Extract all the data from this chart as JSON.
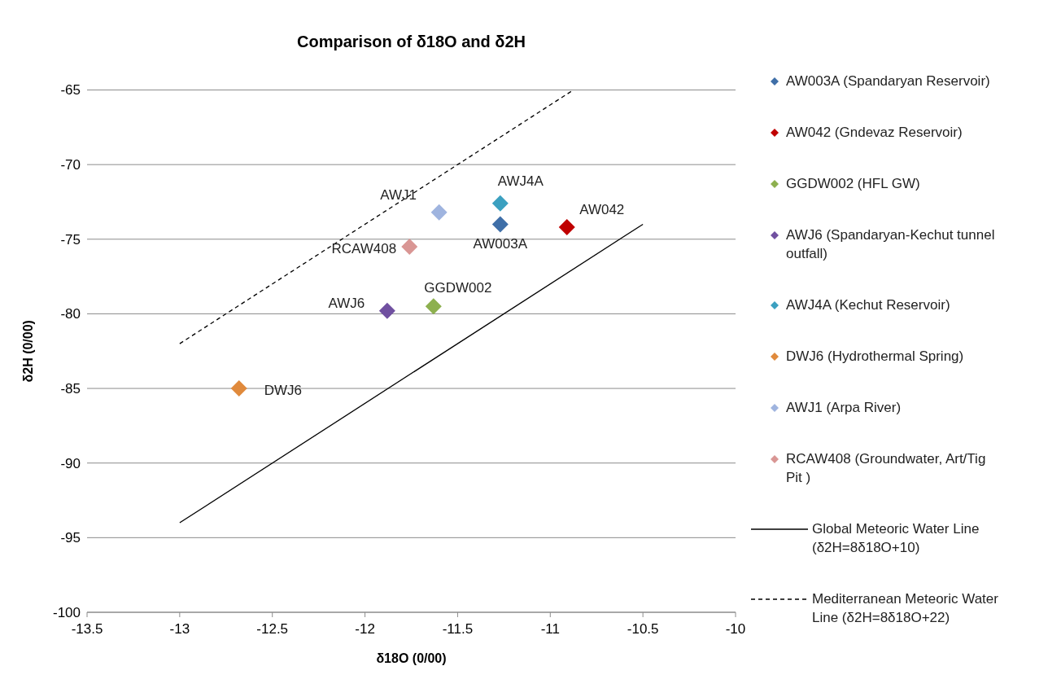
{
  "chart_data": {
    "type": "scatter",
    "title": "Comparison of δ18O and δ2H",
    "xlabel": "δ18O (0/00)",
    "ylabel": "δ2H (0/00)",
    "xlim": [
      -13.5,
      -10
    ],
    "xticks": [
      -13.5,
      -13,
      -12.5,
      -12,
      -11.5,
      -11,
      -10.5,
      -10
    ],
    "ylim": [
      -100,
      -65
    ],
    "yticks": [
      -100,
      -95,
      -90,
      -85,
      -80,
      -75,
      -70,
      -65
    ],
    "grid": "y",
    "legend": "right",
    "marker": "diamond",
    "series": [
      {
        "name": "AW003A (Spandaryan Reservoir)",
        "color": "#3f6fa8",
        "x": [
          -11.27
        ],
        "values": [
          -74
        ]
      },
      {
        "name": "AW042 (Gndevaz Reservoir)",
        "color": "#c00000",
        "x": [
          -10.91
        ],
        "values": [
          -74.2
        ]
      },
      {
        "name": "GGDW002 (HFL GW)",
        "color": "#8db04f",
        "x": [
          -11.63
        ],
        "values": [
          -79.5
        ]
      },
      {
        "name": "AWJ6 (Spandaryan-Kechut tunnel outfall)",
        "color": "#7050a0",
        "x": [
          -11.88
        ],
        "values": [
          -79.8
        ]
      },
      {
        "name": "AWJ4A  (Kechut Reservoir)",
        "color": "#3ba0c0",
        "x": [
          -11.27
        ],
        "values": [
          -72.6
        ]
      },
      {
        "name": "DWJ6 (Hydrothermal Spring)",
        "color": "#e08a3c",
        "x": [
          -12.68
        ],
        "values": [
          -85
        ]
      },
      {
        "name": "AWJ1 (Arpa River)",
        "color": "#9fb4df",
        "x": [
          -11.6
        ],
        "values": [
          -73.2
        ]
      },
      {
        "name": "RCAW408 (Groundwater, Art/Tig Pit )",
        "color": "#d99694",
        "x": [
          -11.76
        ],
        "values": [
          -75.5
        ]
      },
      {
        "name": "Global Meteoric Water Line (δ2H=8δ18O+10)",
        "type": "line",
        "color": "#000000",
        "line_style": "solid",
        "marker": "none",
        "x": [
          -13,
          -10.5
        ],
        "values": [
          -94,
          -74
        ]
      },
      {
        "name": "Mediterranean  Meteoric Water Line (δ2H=8δ18O+22)",
        "type": "line",
        "color": "#000000",
        "line_style": "dashed",
        "marker": "none",
        "x": [
          -13,
          -10.875
        ],
        "values": [
          -82,
          -65
        ]
      }
    ],
    "annotations": [
      {
        "text": "AW003A",
        "x": -11.27,
        "y": -74
      },
      {
        "text": "AW042",
        "x": -10.91,
        "y": -74.2
      },
      {
        "text": "GGDW002",
        "x": -11.63,
        "y": -79.5
      },
      {
        "text": "AWJ6",
        "x": -11.88,
        "y": -79.8
      },
      {
        "text": "AWJ4A",
        "x": -11.27,
        "y": -72.6
      },
      {
        "text": "DWJ6",
        "x": -12.68,
        "y": -85
      },
      {
        "text": "AWJ1",
        "x": -11.6,
        "y": -73.2
      },
      {
        "text": "RCAW408",
        "x": -11.76,
        "y": -75.5
      }
    ]
  }
}
